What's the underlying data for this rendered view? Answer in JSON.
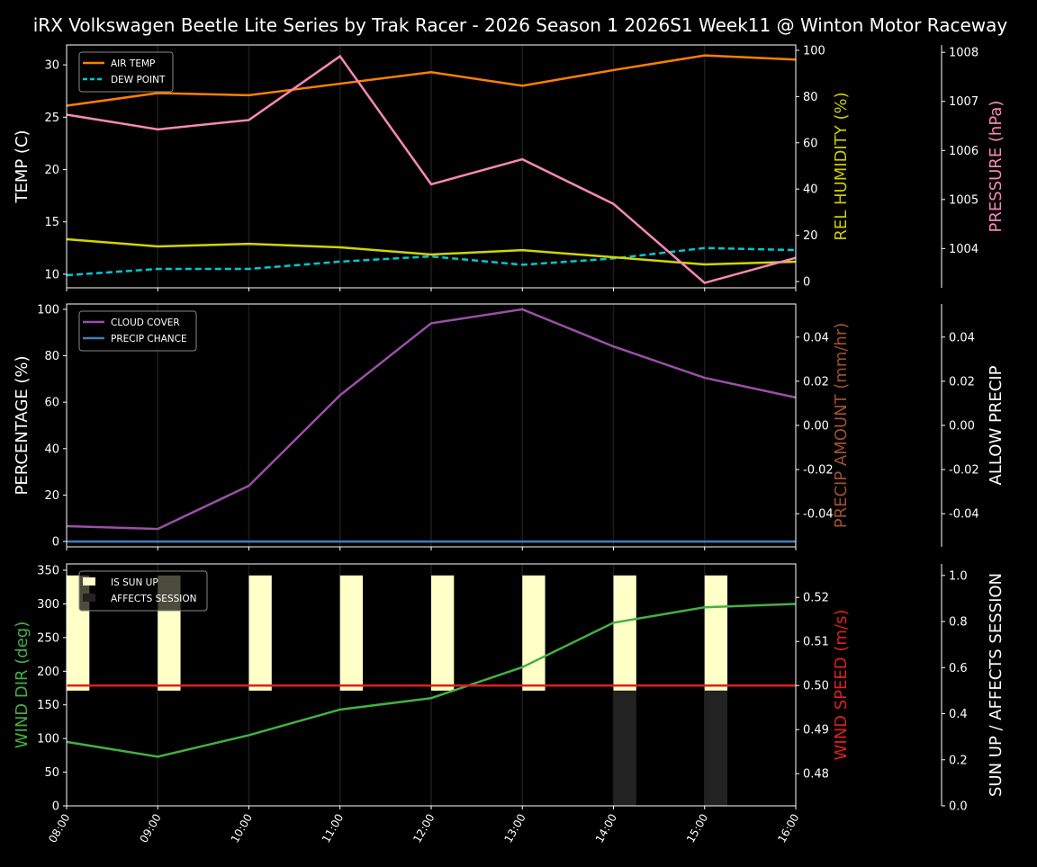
{
  "title": "iRX Volkswagen Beetle Lite Series by Trak Racer - 2026 Season 1 2026S1 Week11 @ Winton Motor Raceway",
  "chart_data": [
    {
      "type": "line",
      "x": [
        "08:00",
        "09:00",
        "10:00",
        "11:00",
        "12:00",
        "13:00",
        "14:00",
        "15:00",
        "16:00"
      ],
      "ylabel": "TEMP (C)",
      "ylim": [
        8.7,
        31.9
      ],
      "yticks": [
        10,
        15,
        20,
        25,
        30
      ],
      "y2label": "REL HUMIDITY (%)",
      "y2lim": [
        -2.7,
        102.3
      ],
      "y2ticks": [
        0,
        20,
        40,
        60,
        80,
        100
      ],
      "y3label": "PRESSURE (hPa)",
      "y3lim": [
        1003.2,
        1008.15
      ],
      "y3ticks": [
        1004,
        1005,
        1006,
        1007,
        1008
      ],
      "legend": "top-left",
      "series": [
        {
          "name": "AIR TEMP",
          "axis": "y",
          "color": "#ff8000",
          "dash": false,
          "values": [
            26.1,
            27.3,
            27.1,
            28.2,
            29.3,
            28.0,
            29.5,
            30.9,
            30.5
          ]
        },
        {
          "name": "DEW POINT",
          "axis": "y",
          "color": "#00c8d0",
          "dash": true,
          "values": [
            9.9,
            10.5,
            10.5,
            11.2,
            11.7,
            10.9,
            11.5,
            12.5,
            12.3
          ]
        },
        {
          "axis": "y2",
          "color": "#d4d400",
          "dash": false,
          "values": [
            18.3,
            15.2,
            16.3,
            14.8,
            11.7,
            13.6,
            10.5,
            7.4,
            8.6
          ]
        },
        {
          "axis": "y3",
          "color": "#f788b8",
          "dash": false,
          "values": [
            1006.73,
            1006.43,
            1006.62,
            1007.92,
            1005.31,
            1005.82,
            1004.91,
            1003.3,
            1003.81
          ]
        }
      ]
    },
    {
      "type": "line",
      "x": [
        "08:00",
        "09:00",
        "10:00",
        "11:00",
        "12:00",
        "13:00",
        "14:00",
        "15:00",
        "16:00"
      ],
      "ylabel": "PERCENTAGE (%)",
      "ylim": [
        -2.3,
        102.3
      ],
      "yticks": [
        0,
        20,
        40,
        60,
        80,
        100
      ],
      "y2label": "PRECIP AMOUNT (mm/hr)",
      "y2lim": [
        -0.055,
        0.055
      ],
      "y2ticks": [
        -0.04,
        -0.02,
        0.0,
        0.02,
        0.04
      ],
      "y3label": "ALLOW PRECIP",
      "y3lim": [
        -0.055,
        0.055
      ],
      "y3ticks": [
        -0.04,
        -0.02,
        0.0,
        0.02,
        0.04
      ],
      "legend": "top-left",
      "series": [
        {
          "name": "CLOUD COVER",
          "axis": "y",
          "color": "#9b4fa8",
          "dash": false,
          "values": [
            6.6,
            5.4,
            24,
            63,
            94,
            100,
            84,
            70.5,
            62
          ]
        },
        {
          "name": "PRECIP CHANCE",
          "axis": "y",
          "color": "#3f7fc0",
          "dash": false,
          "values": [
            0,
            0,
            0,
            0,
            0,
            0,
            0,
            0,
            0
          ]
        }
      ]
    },
    {
      "type": "line",
      "x": [
        "08:00",
        "09:00",
        "10:00",
        "11:00",
        "12:00",
        "13:00",
        "14:00",
        "15:00",
        "16:00"
      ],
      "ylabel": "WIND DIR (deg)",
      "ylim": [
        0,
        359.4
      ],
      "yticks": [
        0,
        50,
        100,
        150,
        200,
        250,
        300,
        350
      ],
      "y2label": "WIND SPEED (m/s)",
      "y2lim": [
        0.4727,
        0.5276
      ],
      "y2ticks": [
        0.48,
        0.49,
        0.5,
        0.51,
        0.52
      ],
      "y3label": "SUN UP / AFFECTS SESSION",
      "y3lim": [
        0,
        1.05
      ],
      "y3ticks": [
        0.0,
        0.2,
        0.4,
        0.6,
        0.8,
        1.0
      ],
      "legend": "top-left",
      "bars": [
        {
          "name": "IS SUN UP",
          "color": "#ffffc8",
          "values": [
            1,
            1,
            1,
            1,
            1,
            1,
            1,
            1,
            0
          ]
        },
        {
          "name": "AFFECTS SESSION",
          "color": "#222222",
          "values": [
            0,
            0,
            0,
            0,
            0,
            0,
            1,
            1,
            0
          ]
        }
      ],
      "series": [
        {
          "axis": "y",
          "color": "#44b044",
          "dash": false,
          "values": [
            95,
            73,
            105,
            143,
            160,
            206,
            272,
            295,
            300
          ]
        },
        {
          "axis": "y2",
          "color": "#dd2020",
          "dash": false,
          "values": [
            0.5,
            0.5,
            0.5,
            0.5,
            0.5,
            0.5,
            0.5,
            0.5,
            0.5
          ]
        }
      ]
    }
  ],
  "axis_colors": {
    "temp": "#ffffff",
    "humidity": "#cccc00",
    "pressure": "#f788b8",
    "percentage": "#ffffff",
    "precip": "#a0522d",
    "allow": "#ffffff",
    "winddir": "#44b044",
    "windspeed": "#dd2020",
    "sun": "#ffffff"
  }
}
